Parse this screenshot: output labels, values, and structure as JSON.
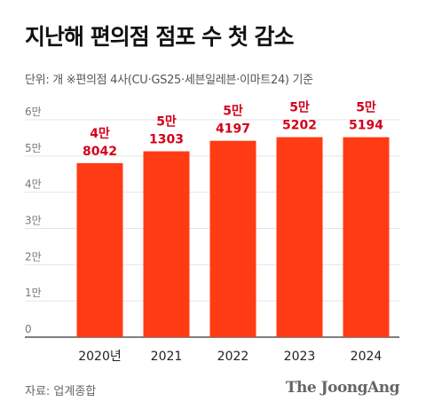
{
  "header": {
    "title": "지난해 편의점 점포 수 첫 감소",
    "subtitle": "단위: 개   ※편의점 4사(CU·GS25·세븐일레븐·이마트24) 기준"
  },
  "footer": {
    "source": "자료: 업계종합",
    "brand": "The JoongAng"
  },
  "chart_data": {
    "type": "bar",
    "categories": [
      "2020년",
      "2021",
      "2022",
      "2023",
      "2024"
    ],
    "values": [
      48042,
      51303,
      54197,
      55202,
      55194
    ],
    "value_labels": [
      [
        "4만",
        "8042"
      ],
      [
        "5만",
        "1303"
      ],
      [
        "5만",
        "4197"
      ],
      [
        "5만",
        "5202"
      ],
      [
        "5만",
        "5194"
      ]
    ],
    "y_ticks": [
      0,
      10000,
      20000,
      30000,
      40000,
      50000,
      60000
    ],
    "y_tick_labels": [
      "0",
      "1만",
      "2만",
      "3만",
      "4만",
      "5만",
      "6만"
    ],
    "ylim": [
      0,
      60000
    ],
    "grid": true,
    "colors": {
      "bar": "#ff3b14",
      "value_label": "#d4001a",
      "grid": "#e4e4e4",
      "axis": "#333333",
      "tick_label": "#777777"
    }
  }
}
